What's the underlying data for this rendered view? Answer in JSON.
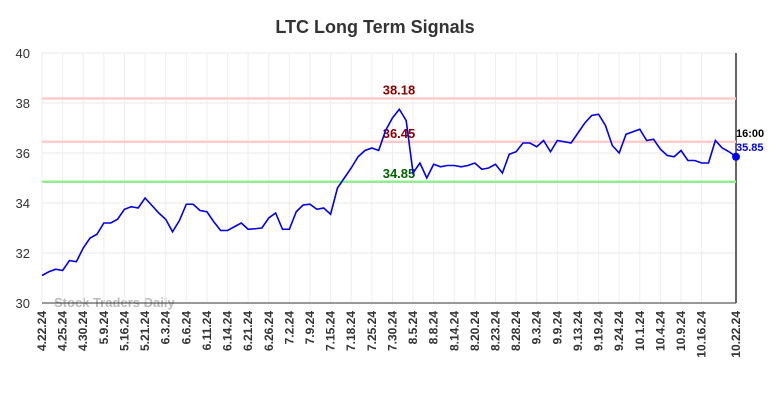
{
  "chart_data": {
    "type": "line",
    "title": "LTC Long Term Signals",
    "watermark": "Stock Traders Daily",
    "categories": [
      "4.22.24",
      null,
      null,
      "4.25.24",
      null,
      null,
      "4.30.24",
      null,
      null,
      "5.9.24",
      null,
      null,
      "5.16.24",
      null,
      null,
      "5.21.24",
      null,
      null,
      "6.3.24",
      null,
      null,
      "6.6.24",
      null,
      null,
      "6.11.24",
      null,
      null,
      "6.14.24",
      null,
      null,
      "6.21.24",
      null,
      null,
      "6.26.24",
      null,
      null,
      "7.2.24",
      null,
      null,
      "7.9.24",
      null,
      null,
      "7.15.24",
      null,
      null,
      "7.18.24",
      null,
      null,
      "7.25.24",
      null,
      null,
      "7.30.24",
      null,
      null,
      "8.5.24",
      null,
      null,
      "8.8.24",
      null,
      null,
      "8.14.24",
      null,
      null,
      "8.20.24",
      null,
      null,
      "8.23.24",
      null,
      null,
      "8.28.24",
      null,
      null,
      "9.3.24",
      null,
      null,
      "9.9.24",
      null,
      null,
      "9.13.24",
      null,
      null,
      "9.19.24",
      null,
      null,
      "9.24.24",
      null,
      null,
      "10.1.24",
      null,
      null,
      "10.4.24",
      null,
      null,
      "10.9.24",
      null,
      null,
      "10.16.24",
      null,
      null,
      null,
      null,
      "10.22.24"
    ],
    "series": [
      {
        "name": "LTC",
        "color": "#0000ee",
        "values": [
          31.1,
          31.25,
          31.35,
          31.3,
          31.7,
          31.65,
          32.2,
          32.6,
          32.75,
          33.2,
          33.2,
          33.35,
          33.75,
          33.85,
          33.8,
          34.2,
          33.9,
          33.6,
          33.35,
          32.85,
          33.3,
          33.95,
          33.95,
          33.7,
          33.65,
          33.25,
          32.9,
          32.9,
          33.05,
          33.2,
          32.95,
          32.97,
          33.0,
          33.4,
          33.6,
          32.95,
          32.95,
          33.65,
          33.92,
          33.95,
          33.75,
          33.8,
          33.55,
          34.6,
          35.0,
          35.4,
          35.85,
          36.1,
          36.2,
          36.1,
          36.9,
          37.4,
          37.75,
          37.3,
          35.2,
          35.6,
          35.0,
          35.55,
          35.45,
          35.5,
          35.5,
          35.45,
          35.5,
          35.6,
          35.35,
          35.4,
          35.55,
          35.2,
          35.95,
          36.05,
          36.4,
          36.4,
          36.25,
          36.5,
          36.05,
          36.5,
          36.45,
          36.4,
          36.8,
          37.2,
          37.5,
          37.55,
          37.1,
          36.3,
          36.0,
          36.75,
          36.85,
          36.95,
          36.5,
          36.55,
          36.15,
          35.9,
          35.85,
          36.1,
          35.7,
          35.7,
          35.6,
          35.6,
          36.5,
          36.2,
          36.05,
          35.85
        ]
      }
    ],
    "reference_lines": [
      {
        "value": 38.18,
        "color": "#ffcccc",
        "label_color": "#8b0000"
      },
      {
        "value": 36.45,
        "color": "#ffcccc",
        "label_color": "#8b0000"
      },
      {
        "value": 34.85,
        "color": "#90ee90",
        "label_color": "#006400"
      }
    ],
    "last_label": "16:00",
    "ylim": [
      30,
      40
    ],
    "yticks": [
      30,
      32,
      34,
      36,
      38,
      40
    ],
    "grid": true
  }
}
